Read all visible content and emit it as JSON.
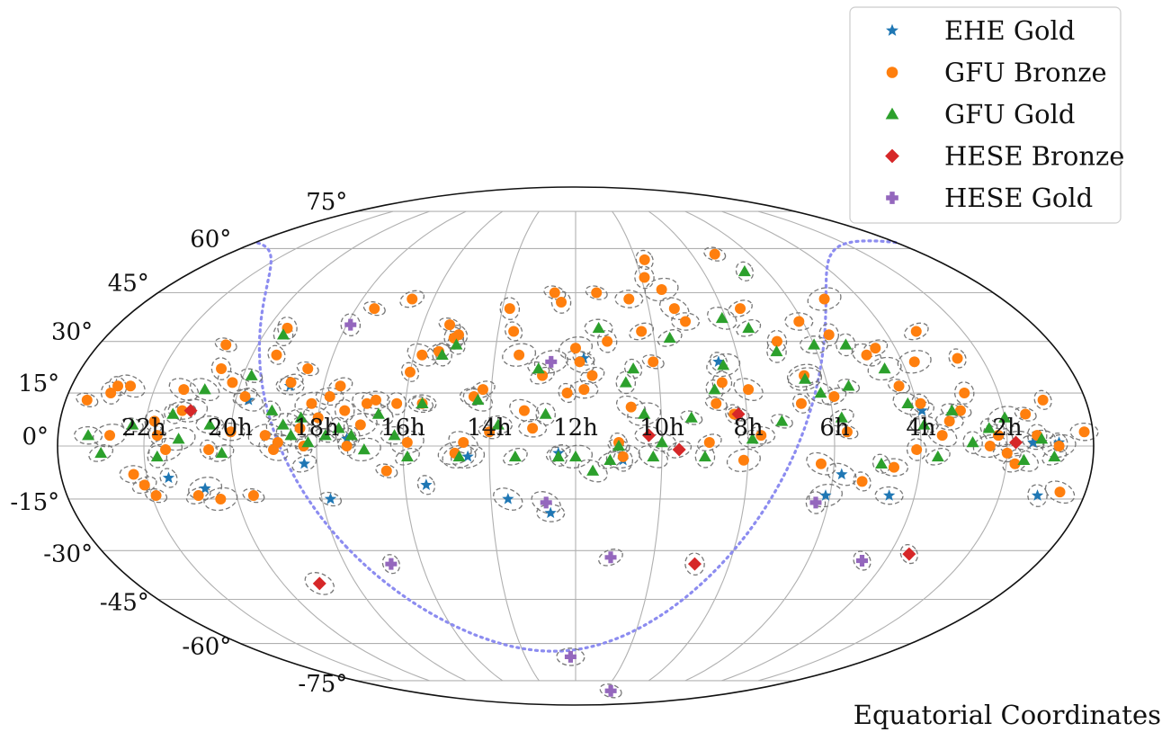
{
  "chart_data": {
    "type": "scatter",
    "projection": "mollweide",
    "grid": true,
    "legend_placement": "top-right",
    "footer": "Equatorial Coordinates",
    "ra_ticks": [
      "22h",
      "20h",
      "18h",
      "16h",
      "14h",
      "12h",
      "10h",
      "8h",
      "6h",
      "4h",
      "2h"
    ],
    "dec_ticks": [
      "75°",
      "60°",
      "45°",
      "30°",
      "15°",
      "0°",
      "-15°",
      "-30°",
      "-45°",
      "-60°",
      "-75°"
    ],
    "colors": {
      "ehe_gold": "#1f77b4",
      "gfu_bronze": "#ff7f0e",
      "gfu_gold": "#2ca02c",
      "hese_bronze": "#d62728",
      "hese_gold": "#9467bd",
      "galactic_plane": "#8c8cf0",
      "contour": "#777777",
      "grid": "#b0b0b0"
    },
    "series": [
      {
        "name": "EHE Gold",
        "key": "ehe_gold",
        "marker": "star",
        "points": [
          [
            21.5,
            -9
          ],
          [
            20.7,
            -12
          ],
          [
            19.7,
            13
          ],
          [
            18.8,
            17
          ],
          [
            18.3,
            -5
          ],
          [
            17.8,
            -15
          ],
          [
            17.3,
            2
          ],
          [
            15.5,
            -11
          ],
          [
            14.5,
            -3
          ],
          [
            13.6,
            -15
          ],
          [
            12.6,
            -19
          ],
          [
            12.4,
            -2
          ],
          [
            11.8,
            25
          ],
          [
            10.9,
            -4
          ],
          [
            8.5,
            24
          ],
          [
            6.1,
            -14
          ],
          [
            5.8,
            -8
          ],
          [
            4.6,
            -14
          ],
          [
            3.9,
            10
          ],
          [
            1.4,
            1
          ],
          [
            1.1,
            -14
          ],
          [
            0.8,
            1
          ]
        ]
      },
      {
        "name": "GFU Bronze",
        "key": "gfu_bronze",
        "marker": "circle",
        "points": [
          [
            23.5,
            13
          ],
          [
            23.0,
            15
          ],
          [
            22.9,
            17
          ],
          [
            22.8,
            3
          ],
          [
            22.6,
            17
          ],
          [
            22.3,
            -8
          ],
          [
            22.1,
            -11
          ],
          [
            21.9,
            -14
          ],
          [
            21.8,
            7
          ],
          [
            21.7,
            3
          ],
          [
            21.5,
            -1
          ],
          [
            21.3,
            16
          ],
          [
            21.2,
            10
          ],
          [
            20.9,
            -14
          ],
          [
            20.8,
            29
          ],
          [
            20.6,
            22
          ],
          [
            20.5,
            -1
          ],
          [
            20.4,
            -15
          ],
          [
            20.2,
            18
          ],
          [
            20.0,
            4
          ],
          [
            19.8,
            14
          ],
          [
            19.6,
            -14
          ],
          [
            19.5,
            34
          ],
          [
            19.4,
            26
          ],
          [
            19.2,
            3
          ],
          [
            19.0,
            -1
          ],
          [
            18.9,
            1
          ],
          [
            18.8,
            18
          ],
          [
            18.5,
            22
          ],
          [
            18.4,
            5
          ],
          [
            18.3,
            0
          ],
          [
            18.2,
            12
          ],
          [
            18.0,
            8
          ],
          [
            17.8,
            14
          ],
          [
            17.6,
            17
          ],
          [
            17.5,
            40
          ],
          [
            17.4,
            10
          ],
          [
            17.3,
            0
          ],
          [
            17.0,
            6
          ],
          [
            16.9,
            12
          ],
          [
            16.7,
            13
          ],
          [
            16.6,
            43
          ],
          [
            16.4,
            -7
          ],
          [
            16.2,
            12
          ],
          [
            16.0,
            21
          ],
          [
            15.9,
            1
          ],
          [
            15.8,
            26
          ],
          [
            15.6,
            12
          ],
          [
            15.4,
            27
          ],
          [
            15.3,
            35
          ],
          [
            15.1,
            31
          ],
          [
            15.0,
            32
          ],
          [
            14.8,
            -2
          ],
          [
            14.6,
            1
          ],
          [
            14.4,
            14
          ],
          [
            14.2,
            16
          ],
          [
            14.0,
            4
          ],
          [
            13.8,
            40
          ],
          [
            13.6,
            33
          ],
          [
            13.4,
            26
          ],
          [
            13.2,
            10
          ],
          [
            13.0,
            5
          ],
          [
            12.8,
            20
          ],
          [
            12.6,
            45
          ],
          [
            12.4,
            42
          ],
          [
            12.2,
            15
          ],
          [
            12.0,
            28
          ],
          [
            11.9,
            24
          ],
          [
            11.8,
            16
          ],
          [
            11.6,
            20
          ],
          [
            11.4,
            45
          ],
          [
            11.2,
            30
          ],
          [
            11.0,
            1
          ],
          [
            10.9,
            -3
          ],
          [
            10.7,
            11
          ],
          [
            10.5,
            43
          ],
          [
            10.3,
            33
          ],
          [
            10.1,
            24
          ],
          [
            9.9,
            50
          ],
          [
            9.7,
            56
          ],
          [
            9.5,
            46
          ],
          [
            9.3,
            40
          ],
          [
            9.1,
            36
          ],
          [
            8.9,
            1
          ],
          [
            8.7,
            12
          ],
          [
            8.5,
            18
          ],
          [
            8.3,
            9
          ],
          [
            8.1,
            -4
          ],
          [
            7.9,
            16
          ],
          [
            7.7,
            3
          ],
          [
            7.5,
            40
          ],
          [
            7.2,
            58
          ],
          [
            6.9,
            30
          ],
          [
            6.7,
            12
          ],
          [
            6.5,
            20
          ],
          [
            6.3,
            -5
          ],
          [
            6.1,
            36
          ],
          [
            5.9,
            14
          ],
          [
            5.7,
            4
          ],
          [
            5.5,
            32
          ],
          [
            5.3,
            -10
          ],
          [
            5.0,
            43
          ],
          [
            4.8,
            26
          ],
          [
            4.6,
            -6
          ],
          [
            4.5,
            28
          ],
          [
            4.3,
            17
          ],
          [
            4.1,
            -1
          ],
          [
            3.9,
            12
          ],
          [
            3.7,
            24
          ],
          [
            3.5,
            3
          ],
          [
            3.3,
            7
          ],
          [
            3.2,
            33
          ],
          [
            3.0,
            10
          ],
          [
            2.8,
            15
          ],
          [
            2.6,
            25
          ],
          [
            2.4,
            0
          ],
          [
            2.2,
            3
          ],
          [
            2.0,
            -2
          ],
          [
            1.8,
            -5
          ],
          [
            1.5,
            9
          ],
          [
            1.3,
            3
          ],
          [
            1.0,
            13
          ],
          [
            0.8,
            0
          ],
          [
            0.6,
            -13
          ],
          [
            0.2,
            4
          ]
        ]
      },
      {
        "name": "GFU Gold",
        "key": "gfu_gold",
        "marker": "triangle",
        "points": [
          [
            23.3,
            3
          ],
          [
            23.0,
            -2
          ],
          [
            22.3,
            6
          ],
          [
            21.7,
            -3
          ],
          [
            21.4,
            9
          ],
          [
            21.2,
            2
          ],
          [
            20.8,
            16
          ],
          [
            20.5,
            6
          ],
          [
            20.2,
            -2
          ],
          [
            19.8,
            20
          ],
          [
            19.5,
            32
          ],
          [
            19.1,
            10
          ],
          [
            18.8,
            6
          ],
          [
            18.6,
            3
          ],
          [
            18.4,
            8
          ],
          [
            18.2,
            1
          ],
          [
            17.8,
            3
          ],
          [
            17.5,
            5
          ],
          [
            17.2,
            3
          ],
          [
            16.9,
            -1
          ],
          [
            16.6,
            9
          ],
          [
            16.2,
            3
          ],
          [
            15.9,
            -3
          ],
          [
            15.6,
            12
          ],
          [
            15.3,
            26
          ],
          [
            15.0,
            29
          ],
          [
            14.7,
            -3
          ],
          [
            14.3,
            13
          ],
          [
            13.8,
            6
          ],
          [
            13.4,
            -3
          ],
          [
            12.9,
            22
          ],
          [
            12.7,
            9
          ],
          [
            12.4,
            -3
          ],
          [
            12.0,
            -3
          ],
          [
            11.6,
            -7
          ],
          [
            11.4,
            34
          ],
          [
            11.2,
            -4
          ],
          [
            11.0,
            0
          ],
          [
            10.8,
            18
          ],
          [
            10.6,
            22
          ],
          [
            10.4,
            9
          ],
          [
            10.2,
            -3
          ],
          [
            10.0,
            1
          ],
          [
            9.6,
            31
          ],
          [
            9.3,
            8
          ],
          [
            9.0,
            -3
          ],
          [
            8.7,
            16
          ],
          [
            8.4,
            23
          ],
          [
            8.1,
            37
          ],
          [
            7.9,
            2
          ],
          [
            7.5,
            34
          ],
          [
            7.2,
            7
          ],
          [
            7.0,
            27
          ],
          [
            6.7,
            52
          ],
          [
            6.5,
            19
          ],
          [
            6.2,
            15
          ],
          [
            6.0,
            29
          ],
          [
            5.8,
            8
          ],
          [
            5.5,
            17
          ],
          [
            5.2,
            29
          ],
          [
            4.9,
            -5
          ],
          [
            4.5,
            22
          ],
          [
            4.2,
            12
          ],
          [
            3.9,
            6
          ],
          [
            3.6,
            -3
          ],
          [
            3.2,
            10
          ],
          [
            2.8,
            1
          ],
          [
            2.4,
            5
          ],
          [
            2.0,
            8
          ],
          [
            1.6,
            -4
          ],
          [
            1.2,
            2
          ],
          [
            0.9,
            -3
          ]
        ]
      },
      {
        "name": "HESE Bronze",
        "key": "hese_bronze",
        "marker": "diamond",
        "points": [
          [
            21.0,
            10
          ],
          [
            19.0,
            -40
          ],
          [
            10.3,
            3
          ],
          [
            9.6,
            -1
          ],
          [
            8.2,
            9
          ],
          [
            8.9,
            -34
          ],
          [
            3.5,
            -31
          ],
          [
            1.8,
            1
          ]
        ]
      },
      {
        "name": "HESE Gold",
        "key": "hese_gold",
        "marker": "plus",
        "points": [
          [
            17.9,
            35
          ],
          [
            16.8,
            -34
          ],
          [
            12.6,
            24
          ],
          [
            12.7,
            -16
          ],
          [
            12.2,
            -65
          ],
          [
            11.1,
            -32
          ],
          [
            9.5,
            -80
          ],
          [
            6.3,
            -16
          ],
          [
            4.6,
            -33
          ]
        ]
      }
    ]
  }
}
